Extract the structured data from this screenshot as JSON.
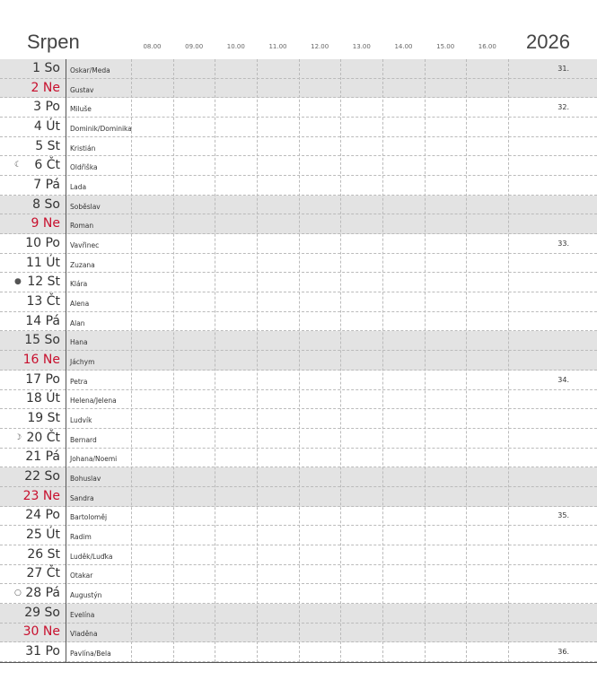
{
  "header": {
    "month": "Srpen",
    "year": "2026",
    "hours": [
      "08.00",
      "09.00",
      "10.00",
      "11.00",
      "12.00",
      "13.00",
      "14.00",
      "15.00",
      "16.00"
    ]
  },
  "rows": [
    {
      "day": "1",
      "weekday": "So",
      "name": "Oskar/Meda",
      "week": "31.",
      "shaded": true
    },
    {
      "day": "2",
      "weekday": "Ne",
      "name": "Gustav",
      "shaded": true,
      "color": "#c8102e"
    },
    {
      "day": "3",
      "weekday": "Po",
      "name": "Miluše",
      "week": "32."
    },
    {
      "day": "4",
      "weekday": "Út",
      "name": "Dominik/Dominika"
    },
    {
      "day": "5",
      "weekday": "St",
      "name": "Kristián"
    },
    {
      "day": "6",
      "weekday": "Čt",
      "name": "Oldřiška",
      "moon": "☾"
    },
    {
      "day": "7",
      "weekday": "Pá",
      "name": "Lada"
    },
    {
      "day": "8",
      "weekday": "So",
      "name": "Soběslav",
      "shaded": true
    },
    {
      "day": "9",
      "weekday": "Ne",
      "name": "Roman",
      "shaded": true,
      "color": "#c8102e"
    },
    {
      "day": "10",
      "weekday": "Po",
      "name": "Vavřinec",
      "week": "33."
    },
    {
      "day": "11",
      "weekday": "Út",
      "name": "Zuzana"
    },
    {
      "day": "12",
      "weekday": "St",
      "name": "Klára",
      "moon": "●"
    },
    {
      "day": "13",
      "weekday": "Čt",
      "name": "Alena"
    },
    {
      "day": "14",
      "weekday": "Pá",
      "name": "Alan"
    },
    {
      "day": "15",
      "weekday": "So",
      "name": "Hana",
      "shaded": true
    },
    {
      "day": "16",
      "weekday": "Ne",
      "name": "Jáchym",
      "shaded": true,
      "color": "#c8102e"
    },
    {
      "day": "17",
      "weekday": "Po",
      "name": "Petra",
      "week": "34."
    },
    {
      "day": "18",
      "weekday": "Út",
      "name": "Helena/Jelena"
    },
    {
      "day": "19",
      "weekday": "St",
      "name": "Ludvík"
    },
    {
      "day": "20",
      "weekday": "Čt",
      "name": "Bernard",
      "moon": "☽"
    },
    {
      "day": "21",
      "weekday": "Pá",
      "name": "Johana/Noemi"
    },
    {
      "day": "22",
      "weekday": "So",
      "name": "Bohuslav",
      "shaded": true
    },
    {
      "day": "23",
      "weekday": "Ne",
      "name": "Sandra",
      "shaded": true,
      "color": "#c8102e"
    },
    {
      "day": "24",
      "weekday": "Po",
      "name": "Bartoloměj",
      "week": "35."
    },
    {
      "day": "25",
      "weekday": "Út",
      "name": "Radim"
    },
    {
      "day": "26",
      "weekday": "St",
      "name": "Luděk/Luďka"
    },
    {
      "day": "27",
      "weekday": "Čt",
      "name": "Otakar"
    },
    {
      "day": "28",
      "weekday": "Pá",
      "name": "Augustýn",
      "moon": "○"
    },
    {
      "day": "29",
      "weekday": "So",
      "name": "Evelína",
      "shaded": true
    },
    {
      "day": "30",
      "weekday": "Ne",
      "name": "Vladěna",
      "shaded": true,
      "color": "#c8102e"
    },
    {
      "day": "31",
      "weekday": "Po",
      "name": "Pavlína/Bela",
      "week": "36."
    }
  ]
}
